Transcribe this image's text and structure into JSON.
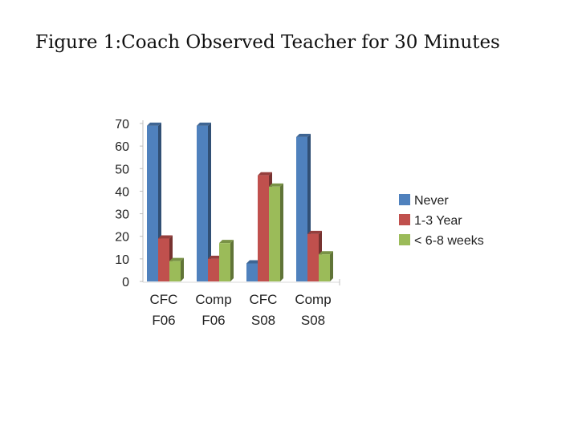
{
  "page": {
    "title": "Figure 1:Coach Observed Teacher for 30 Minutes"
  },
  "chart_data": {
    "type": "bar",
    "style": "3d-clustered",
    "categories": [
      [
        "CFC",
        "F06"
      ],
      [
        "Comp",
        "F06"
      ],
      [
        "CFC",
        "S08"
      ],
      [
        "Comp",
        "S08"
      ]
    ],
    "series": [
      {
        "name": "Never",
        "color": "#4f81bd",
        "values": [
          69,
          69,
          8,
          64
        ]
      },
      {
        "name": "1-3 Year",
        "color": "#c0504d",
        "values": [
          19,
          10,
          47,
          21
        ]
      },
      {
        "name": "< 6-8 weeks",
        "color": "#9bbb59",
        "values": [
          9,
          17,
          42,
          12
        ]
      }
    ],
    "ylim": [
      0,
      70
    ],
    "yticks": [
      0,
      10,
      20,
      30,
      40,
      50,
      60,
      70
    ],
    "grid": false,
    "legend_position": "right"
  }
}
